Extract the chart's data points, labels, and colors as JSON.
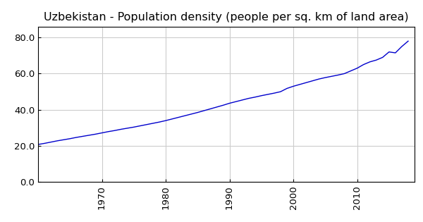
{
  "title": "Uzbekistan - Population density (people per sq. km of land area)",
  "years": [
    1960,
    1961,
    1962,
    1963,
    1964,
    1965,
    1966,
    1967,
    1968,
    1969,
    1970,
    1971,
    1972,
    1973,
    1974,
    1975,
    1976,
    1977,
    1978,
    1979,
    1980,
    1981,
    1982,
    1983,
    1984,
    1985,
    1986,
    1987,
    1988,
    1989,
    1990,
    1991,
    1992,
    1993,
    1994,
    1995,
    1996,
    1997,
    1998,
    1999,
    2000,
    2001,
    2002,
    2003,
    2004,
    2005,
    2006,
    2007,
    2008,
    2009,
    2010,
    2011,
    2012,
    2013,
    2014,
    2015,
    2016,
    2017,
    2018
  ],
  "values": [
    20.8,
    21.4,
    22.1,
    22.8,
    23.4,
    24.0,
    24.7,
    25.3,
    25.9,
    26.5,
    27.2,
    27.9,
    28.5,
    29.2,
    29.8,
    30.4,
    31.1,
    31.8,
    32.5,
    33.2,
    34.0,
    34.9,
    35.8,
    36.7,
    37.6,
    38.5,
    39.5,
    40.5,
    41.5,
    42.5,
    43.6,
    44.5,
    45.4,
    46.3,
    47.0,
    47.8,
    48.5,
    49.2,
    50.0,
    51.8,
    53.0,
    54.0,
    55.0,
    56.0,
    57.0,
    57.8,
    58.5,
    59.2,
    60.0,
    61.5,
    63.0,
    65.0,
    66.5,
    67.5,
    69.0,
    72.0,
    71.5,
    75.0,
    78.0
  ],
  "line_color": "#0000cc",
  "line_width": 1.0,
  "bg_color": "#ffffff",
  "grid_color": "#cccccc",
  "xlim": [
    1960,
    2019
  ],
  "ylim": [
    0.0,
    86.0
  ],
  "yticks": [
    0.0,
    20.0,
    40.0,
    60.0,
    80.0
  ],
  "xticks": [
    1970,
    1980,
    1990,
    2000,
    2010
  ],
  "title_fontsize": 11.5,
  "tick_fontsize": 9.5,
  "font_family": "DejaVu Sans"
}
